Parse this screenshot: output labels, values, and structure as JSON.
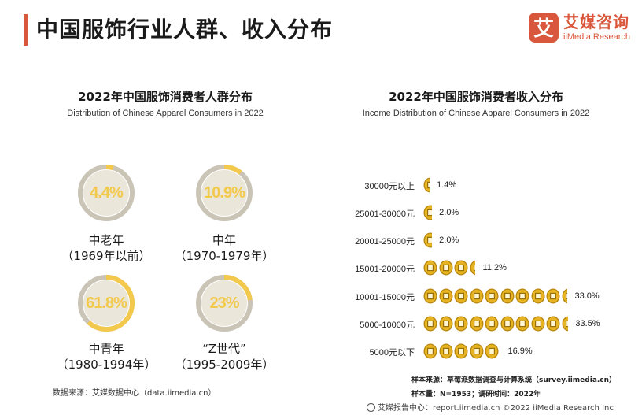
{
  "header": {
    "title": "中国服饰行业人群、收入分布",
    "logo_cn": "艾媒咨询",
    "logo_en": "iiMedia Research",
    "logo_glyph": "艾"
  },
  "colors": {
    "accent": "#d9573c",
    "gold": "#f2c94c",
    "ring_gray": "#c9c4b6",
    "coin_gold": "#d4a017"
  },
  "left_panel": {
    "title": "2022年中国服饰消费者人群分布",
    "subtitle": "Distribution of Chinese Apparel Consumers in 2022",
    "groups": [
      {
        "value_label": "4.4%",
        "value": 4.4,
        "name": "中老年",
        "range": "（1969年以前）"
      },
      {
        "value_label": "10.9%",
        "value": 10.9,
        "name": "中年",
        "range": "（1970-1979年）"
      },
      {
        "value_label": "61.8%",
        "value": 61.8,
        "name": "中青年",
        "range": "（1980-1994年）"
      },
      {
        "value_label": "23%",
        "value": 23,
        "name": "“Z世代”",
        "range": "（1995-2009年）"
      }
    ],
    "source": "数据来源：艾媒数据中心（data.iimedia.cn）"
  },
  "right_panel": {
    "title": "2022年中国服饰消费者收入分布",
    "subtitle": "Income Distribution of Chinese Apparel Consumers in 2022",
    "note_source": "样本来源：草莓派数据调查与计算系统（survey.iimedia.cn）",
    "note_sample": "样本量：N=1953；调研时间：2022年"
  },
  "chart_data": [
    {
      "type": "pie",
      "title": "2022年中国服饰消费者人群分布",
      "subtitle": "Distribution of Chinese Apparel Consumers in 2022",
      "labels": [
        "中老年（1969年以前）",
        "中年（1970-1979年）",
        "中青年（1980-1994年）",
        "“Z世代”（1995-2009年）"
      ],
      "values": [
        4.4,
        10.9,
        61.8,
        23
      ]
    },
    {
      "type": "bar",
      "orientation": "horizontal",
      "title": "2022年中国服饰消费者收入分布",
      "subtitle": "Income Distribution of Chinese Apparel Consumers in 2022",
      "categories": [
        "30000元以上",
        "25001-30000元",
        "20001-25000元",
        "15001-20000元",
        "10001-15000元",
        "5000-10000元",
        "5000元以下"
      ],
      "values": [
        1.4,
        2.0,
        2.0,
        11.2,
        33.0,
        33.5,
        16.9
      ],
      "value_labels": [
        "1.4%",
        "2.0%",
        "2.0%",
        "11.2%",
        "33.0%",
        "33.5%",
        "16.9%"
      ]
    }
  ],
  "footer": {
    "text": "艾媒报告中心：report.iimedia.cn  ©2022  iiMedia Research  Inc"
  }
}
